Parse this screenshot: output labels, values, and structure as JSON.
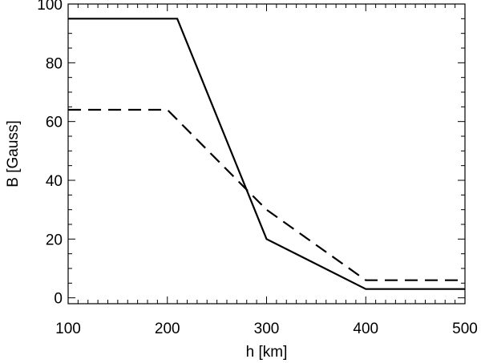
{
  "chart_data": {
    "type": "line",
    "xlabel": "h [km]",
    "ylabel": "B [Gauss]",
    "xlim": [
      100,
      500
    ],
    "ylim": [
      -2,
      100
    ],
    "x_ticks": [
      "100",
      "200",
      "300",
      "400",
      "500"
    ],
    "y_ticks": [
      "0",
      "20",
      "40",
      "60",
      "80",
      "100"
    ],
    "grid": false,
    "legend": "none",
    "series": [
      {
        "style": "solid",
        "color": "#000000",
        "x": [
          100,
          210,
          300,
          400,
          500
        ],
        "y": [
          95,
          95,
          20,
          3,
          3
        ]
      },
      {
        "style": "dashed",
        "color": "#000000",
        "x": [
          100,
          200,
          300,
          400,
          500
        ],
        "y": [
          64,
          64,
          30,
          6,
          6
        ]
      }
    ]
  }
}
